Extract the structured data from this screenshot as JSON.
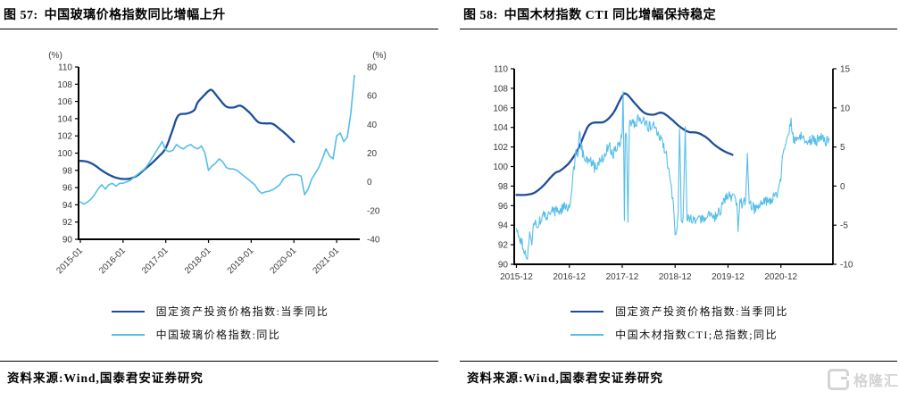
{
  "panels": [
    {
      "figure_label": "图 57:",
      "title": "中国玻璃价格指数同比增幅上升",
      "source": "资料来源:Wind,国泰君安证券研究",
      "legend": [
        {
          "label": "固定资产投资价格指数:当季同比",
          "color": "#1F4E9B"
        },
        {
          "label": "中国玻璃价格指数:同比",
          "color": "#55BEE9"
        }
      ]
    },
    {
      "figure_label": "图 58:",
      "title": "中国木材指数 CTI 同比增幅保持稳定",
      "source": "资料来源:Wind,国泰君安证券研究",
      "legend": [
        {
          "label": "固定资产投资价格指数:当季同比",
          "color": "#1F4E9B"
        },
        {
          "label": "中国木材指数CTI;总指数;同比",
          "color": "#55BEE9"
        }
      ]
    }
  ],
  "watermark": {
    "text": "格隆汇",
    "color": "#d4d4d4"
  },
  "chart_data": [
    {
      "type": "line",
      "title": "中国玻璃价格指数同比增幅上升",
      "grid": false,
      "legend_position": "bottom",
      "left_axis": {
        "label": "(%)",
        "min": 90,
        "max": 110,
        "ticks": [
          110,
          108,
          106,
          104,
          102,
          100,
          98,
          96,
          94,
          92,
          90
        ]
      },
      "right_axis": {
        "label": "(%)",
        "min": -40,
        "max": 80,
        "ticks": [
          80,
          60,
          40,
          20,
          0,
          -20,
          -40
        ]
      },
      "x_ticks": [
        {
          "t": 0,
          "label": "2015-01"
        },
        {
          "t": 12,
          "label": "2016-01"
        },
        {
          "t": 24,
          "label": "2017-01"
        },
        {
          "t": 36,
          "label": "2018-01"
        },
        {
          "t": 48,
          "label": "2019-01"
        },
        {
          "t": 60,
          "label": "2020-01"
        },
        {
          "t": 72,
          "label": "2021-01"
        }
      ],
      "series": [
        {
          "name": "固定资产投资价格指数:当季同比",
          "axis": "left",
          "color": "#1F4E9B",
          "width": 2.3,
          "smooth": true,
          "noise": 0,
          "points": [
            [
              0,
              99.1
            ],
            [
              2,
              99.0
            ],
            [
              4,
              98.6
            ],
            [
              6,
              98.0
            ],
            [
              8,
              97.5
            ],
            [
              10,
              97.15
            ],
            [
              12,
              97.0
            ],
            [
              14,
              97.05
            ],
            [
              16,
              97.4
            ],
            [
              18,
              98.1
            ],
            [
              20,
              98.8
            ],
            [
              22,
              99.6
            ],
            [
              24,
              100.6
            ],
            [
              26,
              102.8
            ],
            [
              27,
              104.0
            ],
            [
              28,
              104.5
            ],
            [
              30,
              104.6
            ],
            [
              32,
              105.0
            ],
            [
              33,
              105.9
            ],
            [
              35,
              106.8
            ],
            [
              36,
              107.2
            ],
            [
              37,
              107.3
            ],
            [
              39,
              106.3
            ],
            [
              41,
              105.4
            ],
            [
              43,
              105.3
            ],
            [
              45,
              105.5
            ],
            [
              47,
              104.9
            ],
            [
              48,
              104.5
            ],
            [
              50,
              103.6
            ],
            [
              52,
              103.45
            ],
            [
              54,
              103.4
            ],
            [
              56,
              102.8
            ],
            [
              58,
              102.1
            ],
            [
              60,
              101.3
            ]
          ]
        },
        {
          "name": "中国玻璃价格指数:同比",
          "axis": "right",
          "color": "#55BEE9",
          "width": 1.6,
          "smooth": false,
          "noise": 0,
          "points": [
            [
              0,
              -14
            ],
            [
              1,
              -15.5
            ],
            [
              2,
              -14
            ],
            [
              3,
              -12
            ],
            [
              4,
              -9
            ],
            [
              5,
              -5
            ],
            [
              6,
              -2
            ],
            [
              7,
              -5
            ],
            [
              8,
              -2
            ],
            [
              9,
              -1
            ],
            [
              10,
              -3
            ],
            [
              11,
              -1
            ],
            [
              12,
              -1
            ],
            [
              13,
              0
            ],
            [
              14,
              1
            ],
            [
              15,
              3
            ],
            [
              16,
              5
            ],
            [
              17,
              7
            ],
            [
              18,
              9
            ],
            [
              19,
              12
            ],
            [
              20,
              16
            ],
            [
              21,
              20
            ],
            [
              22,
              24
            ],
            [
              23,
              28
            ],
            [
              24,
              22
            ],
            [
              25,
              21
            ],
            [
              26,
              22
            ],
            [
              27,
              26
            ],
            [
              28,
              24
            ],
            [
              29,
              23
            ],
            [
              30,
              25
            ],
            [
              31,
              26
            ],
            [
              32,
              24
            ],
            [
              33,
              23
            ],
            [
              34,
              25
            ],
            [
              35,
              20
            ],
            [
              36,
              8
            ],
            [
              37,
              11
            ],
            [
              38,
              13
            ],
            [
              39,
              16
            ],
            [
              40,
              14
            ],
            [
              41,
              10
            ],
            [
              42,
              9
            ],
            [
              43,
              9
            ],
            [
              44,
              8
            ],
            [
              45,
              6
            ],
            [
              46,
              4
            ],
            [
              47,
              2
            ],
            [
              48,
              0
            ],
            [
              49,
              -2
            ],
            [
              50,
              -6
            ],
            [
              51,
              -8
            ],
            [
              52,
              -7
            ],
            [
              53,
              -6.5
            ],
            [
              54,
              -5.5
            ],
            [
              55,
              -4
            ],
            [
              56,
              -2
            ],
            [
              57,
              2
            ],
            [
              58,
              4
            ],
            [
              59,
              5
            ],
            [
              60,
              5
            ],
            [
              61,
              5
            ],
            [
              62,
              4
            ],
            [
              63,
              -9
            ],
            [
              64,
              -5
            ],
            [
              65,
              2
            ],
            [
              66,
              6
            ],
            [
              67,
              10
            ],
            [
              68,
              16
            ],
            [
              69,
              23
            ],
            [
              70,
              18
            ],
            [
              71,
              16
            ],
            [
              72,
              32
            ],
            [
              73,
              34
            ],
            [
              74,
              28
            ],
            [
              75,
              31
            ],
            [
              76,
              48
            ],
            [
              77,
              74
            ]
          ]
        }
      ]
    },
    {
      "type": "line",
      "title": "中国木材指数 CTI 同比增幅保持稳定",
      "grid": false,
      "legend_position": "bottom",
      "left_axis": {
        "label": "",
        "min": 90,
        "max": 110,
        "ticks": [
          110,
          108,
          106,
          104,
          102,
          100,
          98,
          96,
          94,
          92,
          90
        ]
      },
      "right_axis": {
        "label": "",
        "min": -10,
        "max": 15,
        "ticks": [
          15,
          10,
          5,
          0,
          -5,
          -10
        ]
      },
      "x_ticks": [
        {
          "t": 0,
          "label": "2015-12"
        },
        {
          "t": 12,
          "label": "2016-12"
        },
        {
          "t": 24,
          "label": "2017-12"
        },
        {
          "t": 36,
          "label": "2018-12"
        },
        {
          "t": 48,
          "label": "2019-12"
        },
        {
          "t": 60,
          "label": "2020-12"
        }
      ],
      "series": [
        {
          "name": "固定资产投资价格指数:当季同比",
          "axis": "left",
          "color": "#1F4E9B",
          "width": 2.3,
          "smooth": true,
          "noise": 0,
          "points": [
            [
              0,
              97.1
            ],
            [
              2,
              97.1
            ],
            [
              4,
              97.3
            ],
            [
              6,
              98.0
            ],
            [
              8,
              99.0
            ],
            [
              9,
              99.4
            ],
            [
              10,
              99.6
            ],
            [
              12,
              100.4
            ],
            [
              14,
              101.8
            ],
            [
              16,
              103.9
            ],
            [
              17,
              104.4
            ],
            [
              18,
              104.5
            ],
            [
              20,
              104.6
            ],
            [
              22,
              105.5
            ],
            [
              24,
              107.2
            ],
            [
              25,
              107.4
            ],
            [
              27,
              106.4
            ],
            [
              29,
              105.5
            ],
            [
              31,
              105.3
            ],
            [
              33,
              105.5
            ],
            [
              35,
              104.9
            ],
            [
              37,
              104.1
            ],
            [
              39,
              103.55
            ],
            [
              41,
              103.45
            ],
            [
              43,
              103.0
            ],
            [
              45,
              102.2
            ],
            [
              47,
              101.6
            ],
            [
              49,
              101.2
            ]
          ]
        },
        {
          "name": "中国木材指数CTI;总指数;同比",
          "axis": "right",
          "color": "#55BEE9",
          "width": 1.1,
          "smooth": false,
          "noise": 0.7,
          "points": [
            [
              0,
              -5
            ],
            [
              1,
              -7
            ],
            [
              2,
              -8.5
            ],
            [
              2.5,
              -8.8
            ],
            [
              3,
              -6
            ],
            [
              3.5,
              -7.5
            ],
            [
              4,
              -4.5
            ],
            [
              5,
              -5
            ],
            [
              6,
              -3.5
            ],
            [
              7,
              -4
            ],
            [
              8,
              -3.3
            ],
            [
              9,
              -3.2
            ],
            [
              10,
              -3
            ],
            [
              11,
              -2.5
            ],
            [
              12,
              -2.7
            ],
            [
              12.5,
              -1
            ],
            [
              13,
              2
            ],
            [
              13.5,
              4.5
            ],
            [
              14,
              4.2
            ],
            [
              14.3,
              7.5
            ],
            [
              14.6,
              5.5
            ],
            [
              15,
              4.2
            ],
            [
              16,
              3.5
            ],
            [
              17,
              3
            ],
            [
              18,
              2.2
            ],
            [
              19,
              3.2
            ],
            [
              20,
              3.6
            ],
            [
              21,
              5.5
            ],
            [
              21.5,
              4.5
            ],
            [
              22,
              4.2
            ],
            [
              23,
              5.2
            ],
            [
              23.6,
              5.8
            ],
            [
              24,
              7
            ],
            [
              24.2,
              12.5
            ],
            [
              24.5,
              -4.5
            ],
            [
              24.7,
              7
            ],
            [
              25,
              6.5
            ],
            [
              25.3,
              -4.9
            ],
            [
              25.6,
              8
            ],
            [
              26,
              8.3
            ],
            [
              27,
              8
            ],
            [
              28,
              9
            ],
            [
              28.5,
              8
            ],
            [
              29,
              8.5
            ],
            [
              30,
              7.5
            ],
            [
              31,
              8
            ],
            [
              32,
              7
            ],
            [
              33,
              5.8
            ],
            [
              34,
              4
            ],
            [
              35,
              0.5
            ],
            [
              35.5,
              -2
            ],
            [
              36,
              -5.7
            ],
            [
              36.3,
              -6.5
            ],
            [
              36.7,
              -3.5
            ],
            [
              37,
              7.9
            ],
            [
              37.4,
              -4
            ],
            [
              37.8,
              -4.5
            ],
            [
              38.3,
              7.9
            ],
            [
              38.7,
              -4.2
            ],
            [
              39,
              -4
            ],
            [
              40,
              -4.4
            ],
            [
              41,
              -4
            ],
            [
              42,
              -4.2
            ],
            [
              43,
              -3.8
            ],
            [
              44,
              -3.6
            ],
            [
              45,
              -3.9
            ],
            [
              46,
              -3.4
            ],
            [
              47,
              -2
            ],
            [
              48,
              -1.3
            ],
            [
              49,
              -1.6
            ],
            [
              50,
              -2
            ],
            [
              50.3,
              -5.4
            ],
            [
              50.7,
              -1.8
            ],
            [
              51,
              -2.2
            ],
            [
              52,
              -1.8
            ],
            [
              52.4,
              3.9
            ],
            [
              52.8,
              -2.2
            ],
            [
              53,
              -2.3
            ],
            [
              54,
              -2.9
            ],
            [
              55,
              -2.6
            ],
            [
              56,
              -2.1
            ],
            [
              57,
              -1.9
            ],
            [
              58,
              -1.6
            ],
            [
              59,
              -1.2
            ],
            [
              60,
              1.2
            ],
            [
              60.5,
              4.5
            ],
            [
              61,
              5.2
            ],
            [
              61.5,
              6.6
            ],
            [
              62,
              7.6
            ],
            [
              62.3,
              8.2
            ],
            [
              63,
              5.6
            ],
            [
              64,
              6.1
            ],
            [
              65,
              6.6
            ],
            [
              66,
              5.4
            ],
            [
              67,
              6
            ],
            [
              68,
              5.7
            ],
            [
              69,
              6.3
            ],
            [
              70,
              5.7
            ],
            [
              71,
              6.1
            ]
          ]
        }
      ]
    }
  ]
}
